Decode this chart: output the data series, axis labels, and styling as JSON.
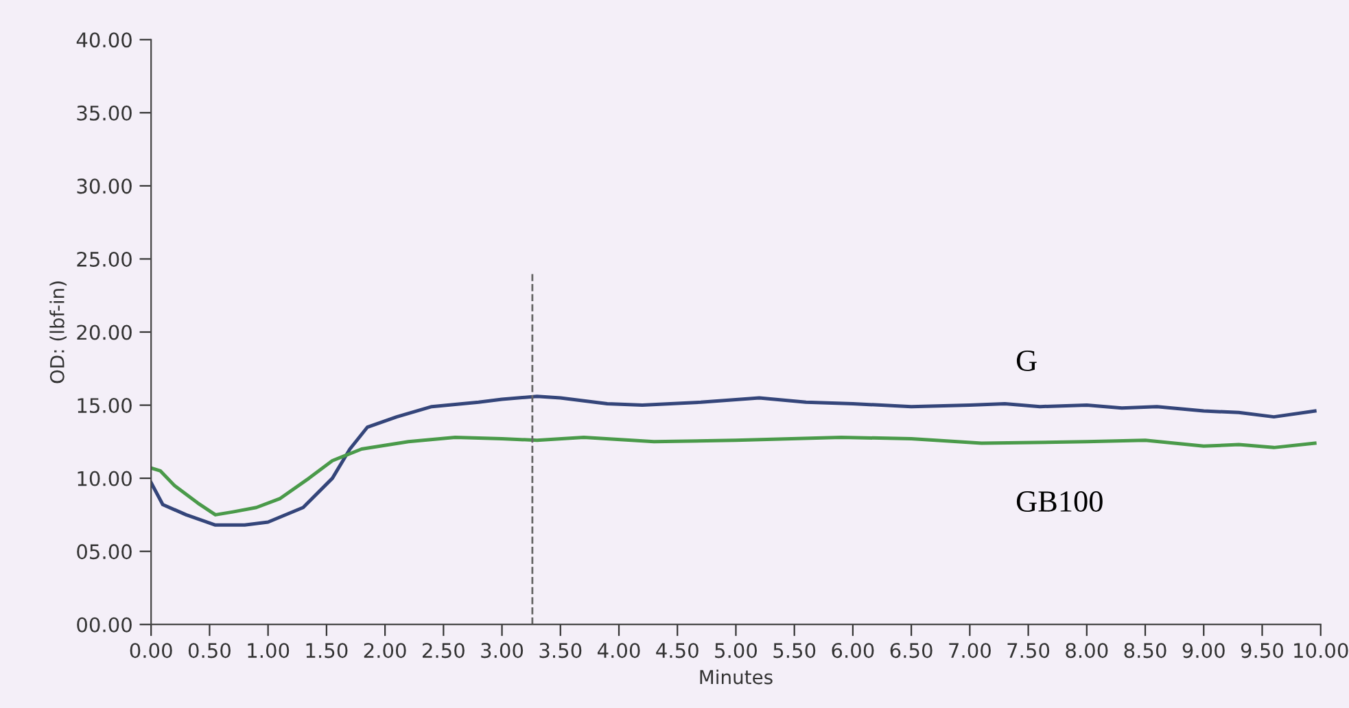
{
  "chart_data": {
    "type": "line",
    "xlabel": "Minutes",
    "ylabel": "OD: (lbf-in)",
    "xlim": [
      0,
      10
    ],
    "ylim": [
      0,
      40
    ],
    "xticks": [
      {
        "value": 0,
        "label": "0.00"
      },
      {
        "value": 0.5,
        "label": "0.50"
      },
      {
        "value": 1,
        "label": "1.00"
      },
      {
        "value": 1.5,
        "label": "1.50"
      },
      {
        "value": 2,
        "label": "2.00"
      },
      {
        "value": 2.5,
        "label": "2.50"
      },
      {
        "value": 3,
        "label": "3.00"
      },
      {
        "value": 3.5,
        "label": "3.50"
      },
      {
        "value": 4,
        "label": "4.00"
      },
      {
        "value": 4.5,
        "label": "4.50"
      },
      {
        "value": 5,
        "label": "5.00"
      },
      {
        "value": 5.5,
        "label": "5.50"
      },
      {
        "value": 6,
        "label": "6.00"
      },
      {
        "value": 6.5,
        "label": "6.50"
      },
      {
        "value": 7,
        "label": "7.00"
      },
      {
        "value": 7.5,
        "label": "7.50"
      },
      {
        "value": 8,
        "label": "8.00"
      },
      {
        "value": 8.5,
        "label": "8.50"
      },
      {
        "value": 9,
        "label": "9.00"
      },
      {
        "value": 9.5,
        "label": "9.50"
      },
      {
        "value": 10,
        "label": "10.00"
      }
    ],
    "yticks": [
      {
        "value": 0,
        "label": "00.00"
      },
      {
        "value": 5,
        "label": "05.00"
      },
      {
        "value": 10,
        "label": "10.00"
      },
      {
        "value": 15,
        "label": "15.00"
      },
      {
        "value": 20,
        "label": "20.00"
      },
      {
        "value": 25,
        "label": "25.00"
      },
      {
        "value": 30,
        "label": "30.00"
      },
      {
        "value": 35,
        "label": "35.00"
      },
      {
        "value": 40,
        "label": "40.00"
      }
    ],
    "grid": false,
    "legend": false,
    "marker": "none",
    "line_style": "solid",
    "ref_lines": [
      {
        "axis": "x",
        "value": 3.26,
        "color": "#666666",
        "line_style": "dashed"
      }
    ],
    "series": [
      {
        "name": "G",
        "color": "#34457a",
        "x": [
          0,
          0.1,
          0.3,
          0.55,
          0.8,
          1.0,
          1.3,
          1.55,
          1.7,
          1.85,
          2.1,
          2.4,
          2.8,
          3.0,
          3.3,
          3.5,
          3.9,
          4.2,
          4.7,
          5.2,
          5.6,
          6.0,
          6.5,
          7.0,
          7.3,
          7.6,
          8.0,
          8.3,
          8.6,
          9.0,
          9.3,
          9.6,
          9.95
        ],
        "values": [
          9.7,
          8.2,
          7.5,
          6.8,
          6.8,
          7.0,
          8.0,
          10.0,
          12.0,
          13.5,
          14.2,
          14.9,
          15.2,
          15.4,
          15.6,
          15.5,
          15.1,
          15.0,
          15.2,
          15.5,
          15.2,
          15.1,
          14.9,
          15.0,
          15.1,
          14.9,
          15.0,
          14.8,
          14.9,
          14.6,
          14.5,
          14.2,
          14.6
        ]
      },
      {
        "name": "GB100",
        "color": "#4a9a4a",
        "x": [
          0,
          0.08,
          0.2,
          0.4,
          0.55,
          0.7,
          0.9,
          1.1,
          1.35,
          1.55,
          1.8,
          2.2,
          2.6,
          3.0,
          3.3,
          3.7,
          4.3,
          5.0,
          5.9,
          6.5,
          7.1,
          8.0,
          8.5,
          9.0,
          9.3,
          9.6,
          9.95
        ],
        "values": [
          10.7,
          10.5,
          9.5,
          8.3,
          7.5,
          7.7,
          8.0,
          8.6,
          10.0,
          11.2,
          12.0,
          12.5,
          12.8,
          12.7,
          12.6,
          12.8,
          12.5,
          12.6,
          12.8,
          12.7,
          12.4,
          12.5,
          12.6,
          12.2,
          12.3,
          12.1,
          12.4
        ]
      }
    ]
  }
}
